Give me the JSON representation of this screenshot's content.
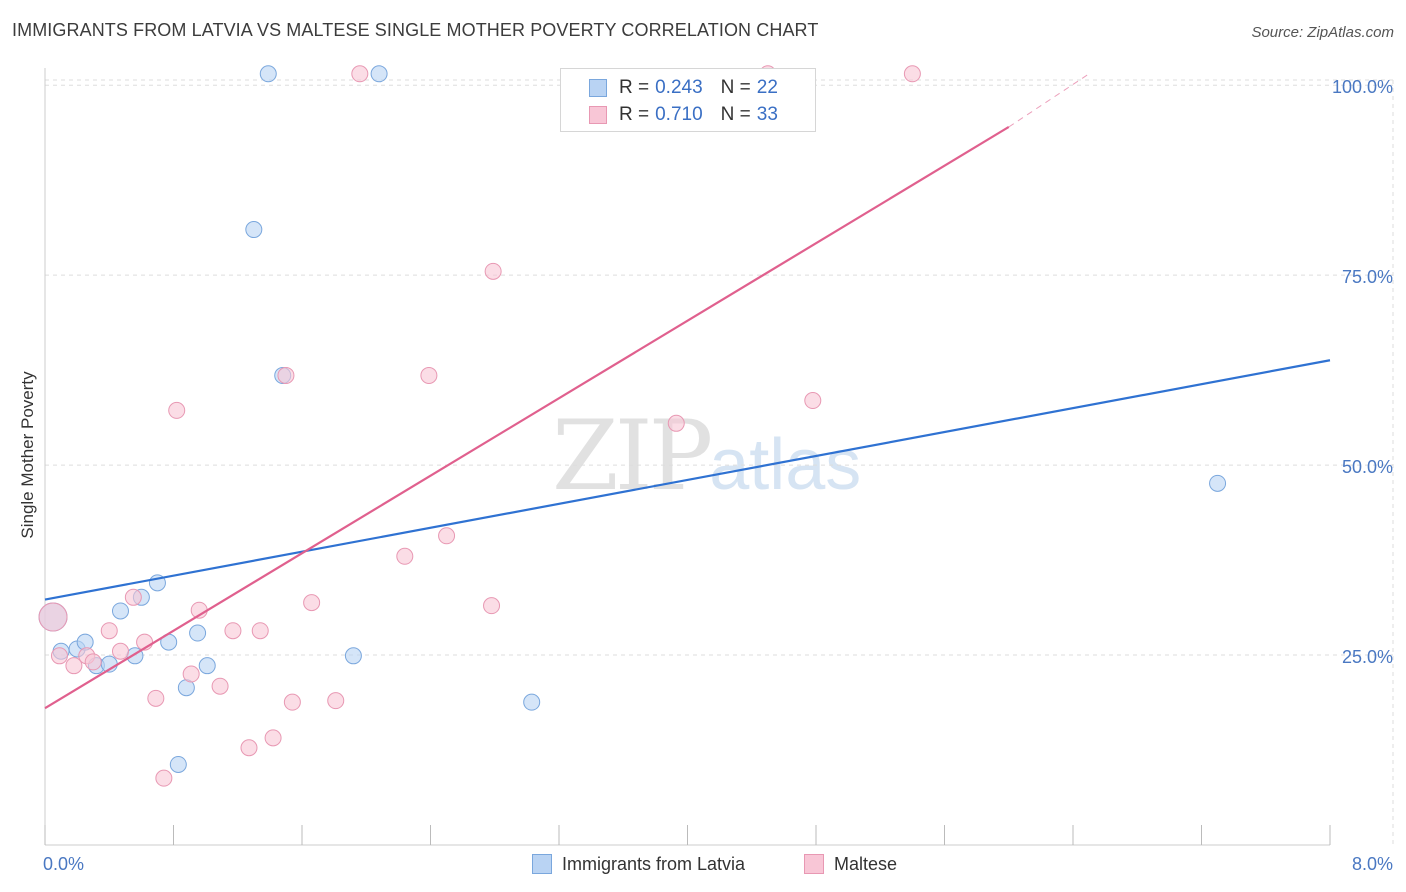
{
  "title": "IMMIGRANTS FROM LATVIA VS MALTESE SINGLE MOTHER POVERTY CORRELATION CHART",
  "source": "Source: ZipAtlas.com",
  "watermark": {
    "zip": "ZIP",
    "atlas": "atlas"
  },
  "legend_stats": {
    "latvia": {
      "r_label": "R = ",
      "r_value": "0.243",
      "n_label": "N = ",
      "n_value": "22"
    },
    "maltese": {
      "r_label": "R = ",
      "r_value": "0.710",
      "n_label": "N = ",
      "n_value": "33"
    }
  },
  "colors": {
    "latvia_fill": "#b9d3f3",
    "latvia_stroke": "#7aa7dd",
    "latvia_line": "#2f72d2",
    "maltese_fill": "#f8c6d6",
    "maltese_stroke": "#e898b3",
    "maltese_line": "#e0608e",
    "tick": "#4a78c2",
    "grid": "#dddddd"
  },
  "chart_data": {
    "type": "scatter",
    "title": "IMMIGRANTS FROM LATVIA VS MALTESE SINGLE MOTHER POVERTY CORRELATION CHART",
    "xlabel": "",
    "ylabel": "Single Mother Poverty",
    "xlim": [
      0,
      8
    ],
    "ylim": [
      0,
      102
    ],
    "x_tick_labels": [
      "0.0%",
      "8.0%"
    ],
    "y_ticks": [
      25,
      50,
      75,
      100
    ],
    "y_tick_labels": [
      "25.0%",
      "50.0%",
      "75.0%",
      "100.0%"
    ],
    "grid": true,
    "series": [
      {
        "name": "Immigrants from Latvia",
        "key": "latvia",
        "points": [
          [
            0.05,
            30.0,
            14
          ],
          [
            0.1,
            25.5,
            8
          ],
          [
            0.2,
            25.8,
            8
          ],
          [
            0.25,
            26.7,
            8
          ],
          [
            0.32,
            23.6,
            8
          ],
          [
            0.4,
            23.8,
            8
          ],
          [
            0.47,
            30.8,
            8
          ],
          [
            0.56,
            24.9,
            8
          ],
          [
            0.6,
            32.6,
            8
          ],
          [
            0.7,
            34.5,
            8
          ],
          [
            0.77,
            26.7,
            8
          ],
          [
            0.83,
            10.6,
            8
          ],
          [
            0.88,
            20.7,
            8
          ],
          [
            0.95,
            27.9,
            8
          ],
          [
            1.01,
            23.6,
            8
          ],
          [
            1.3,
            81.0,
            8
          ],
          [
            1.39,
            101.5,
            8
          ],
          [
            1.48,
            61.8,
            8
          ],
          [
            1.92,
            24.9,
            8
          ],
          [
            2.08,
            101.5,
            8
          ],
          [
            3.03,
            18.8,
            8
          ],
          [
            7.3,
            47.6,
            8
          ]
        ],
        "trend": [
          [
            0,
            32.3
          ],
          [
            8,
            63.8
          ]
        ]
      },
      {
        "name": "Maltese",
        "key": "maltese",
        "points": [
          [
            0.05,
            30.0,
            14
          ],
          [
            0.09,
            24.9,
            8
          ],
          [
            0.18,
            23.6,
            8
          ],
          [
            0.26,
            24.9,
            8
          ],
          [
            0.3,
            24.1,
            8
          ],
          [
            0.4,
            28.2,
            8
          ],
          [
            0.47,
            25.5,
            8
          ],
          [
            0.55,
            32.6,
            8
          ],
          [
            0.62,
            26.7,
            8
          ],
          [
            0.69,
            19.3,
            8
          ],
          [
            0.74,
            8.8,
            8
          ],
          [
            0.82,
            57.2,
            8
          ],
          [
            0.91,
            22.5,
            8
          ],
          [
            0.96,
            30.9,
            8
          ],
          [
            1.09,
            20.9,
            8
          ],
          [
            1.17,
            28.2,
            8
          ],
          [
            1.27,
            12.8,
            8
          ],
          [
            1.34,
            28.2,
            8
          ],
          [
            1.42,
            14.1,
            8
          ],
          [
            1.5,
            61.8,
            8
          ],
          [
            1.54,
            18.8,
            8
          ],
          [
            1.66,
            31.9,
            8
          ],
          [
            1.81,
            19.0,
            8
          ],
          [
            1.96,
            101.5,
            8
          ],
          [
            2.24,
            38.0,
            8
          ],
          [
            2.39,
            61.8,
            8
          ],
          [
            2.5,
            40.7,
            8
          ],
          [
            2.78,
            31.5,
            8
          ],
          [
            2.79,
            75.5,
            8
          ],
          [
            3.93,
            55.5,
            8
          ],
          [
            4.5,
            101.5,
            8
          ],
          [
            4.78,
            58.5,
            8
          ],
          [
            5.4,
            101.5,
            8
          ]
        ],
        "trend": [
          [
            0,
            18.0
          ],
          [
            6.0,
            94.5
          ]
        ],
        "trend_dashed": [
          [
            6.0,
            94.5
          ],
          [
            6.5,
            101.5
          ]
        ]
      }
    ]
  },
  "bottom_legend": [
    {
      "key": "latvia",
      "label": "Immigrants from Latvia"
    },
    {
      "key": "maltese",
      "label": "Maltese"
    }
  ]
}
